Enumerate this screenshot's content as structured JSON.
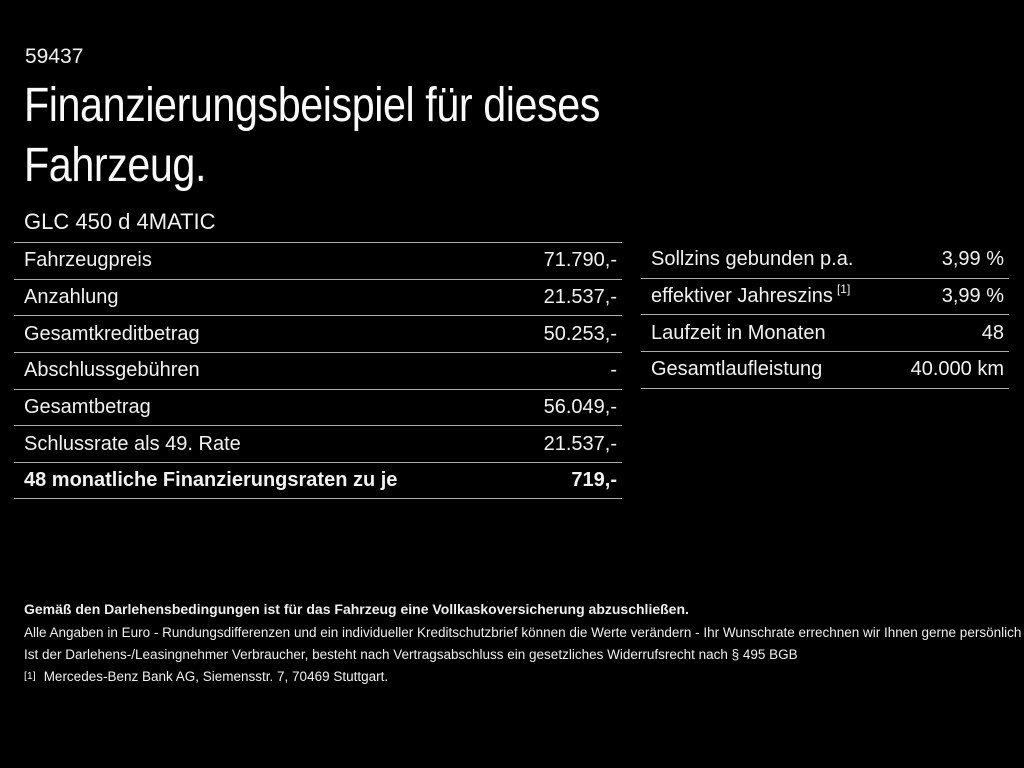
{
  "page": {
    "id_number": "59437",
    "title_line1": "Finanzierungsbeispiel für dieses",
    "title_line2": "Fahrzeug.",
    "vehicle_model": "GLC 450 d 4MATIC"
  },
  "finance": {
    "rows": [
      {
        "label": "Fahrzeugpreis",
        "value": "71.790,-"
      },
      {
        "label": "Anzahlung",
        "value": "21.537,-"
      },
      {
        "label": "Gesamtkreditbetrag",
        "value": "50.253,-"
      },
      {
        "label": "Abschlussgebühren",
        "value": "-"
      },
      {
        "label": "Gesamtbetrag",
        "value": "56.049,-"
      },
      {
        "label": "Schlussrate als 49. Rate",
        "value": "21.537,-"
      },
      {
        "label": "48 monatliche Finanzierungsraten zu je",
        "value": "719,-"
      }
    ]
  },
  "terms": {
    "rows": [
      {
        "label": "Sollzins gebunden p.a.",
        "value": "3,99 %"
      },
      {
        "label": "effektiver Jahreszins",
        "sup": "[1]",
        "value": "3,99 %"
      },
      {
        "label": "Laufzeit in Monaten",
        "value": "48"
      },
      {
        "label": "Gesamtlaufleistung",
        "value": "40.000 km"
      }
    ]
  },
  "footer": {
    "line1": "Gemäß den Darlehensbedingungen ist für das Fahrzeug eine Vollkaskoversicherung abzuschließen.",
    "line2": "Alle Angaben in Euro - Rundungsdifferenzen und ein individueller Kreditschutzbrief können die Werte verändern - Ihr Wunschrate errechnen wir Ihnen gerne persönlich",
    "line3": "Ist der Darlehens-/Leasingnehmer Verbraucher, besteht nach Vertragsabschluss ein gesetzliches Widerrufsrecht nach § 495 BGB",
    "footnote_marker": "[1]",
    "footnote_text": "Mercedes-Benz Bank AG, Siemensstr. 7, 70469 Stuttgart."
  },
  "colors": {
    "background": "#000000",
    "text": "#f2f2f2",
    "divider": "#adadad"
  }
}
